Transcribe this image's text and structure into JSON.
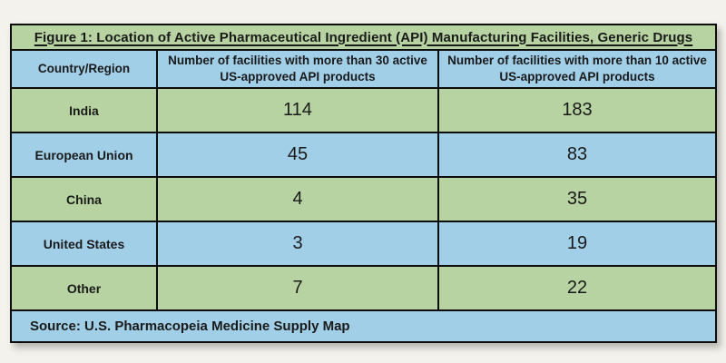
{
  "page": {
    "background_color": "#f3f2ec",
    "green_color": "#b6d3a1",
    "blue_color": "#a2cfe8",
    "border_color": "#0d0d0d",
    "text_color": "#1a1a1a"
  },
  "table": {
    "title": "Figure 1: Location of Active Pharmaceutical Ingredient (API) Manufacturing Facilities, Generic Drugs",
    "columns": [
      {
        "label": "Country/Region"
      },
      {
        "label": "Number of facilities with more than 30 active US-approved API products"
      },
      {
        "label": "Number of facilities with more than 10 active US-approved API products"
      }
    ],
    "rows": [
      {
        "country": "India",
        "more_than_30": "114",
        "more_than_10": "183"
      },
      {
        "country": "European Union",
        "more_than_30": "45",
        "more_than_10": "83"
      },
      {
        "country": "China",
        "more_than_30": "4",
        "more_than_10": "35"
      },
      {
        "country": "United States",
        "more_than_30": "3",
        "more_than_10": "19"
      },
      {
        "country": "Other",
        "more_than_30": "7",
        "more_than_10": "22"
      }
    ],
    "source": "Source: U.S. Pharmacopeia Medicine Supply Map"
  },
  "chart_data": {
    "type": "table",
    "title": "Figure 1: Location of Active Pharmaceutical Ingredient (API) Manufacturing Facilities, Generic Drugs",
    "columns": [
      "Country/Region",
      "Number of facilities with more than 30 active US-approved API products",
      "Number of facilities with more than 10 active US-approved API products"
    ],
    "rows": [
      [
        "India",
        114,
        183
      ],
      [
        "European Union",
        45,
        83
      ],
      [
        "China",
        4,
        35
      ],
      [
        "United States",
        3,
        19
      ],
      [
        "Other",
        7,
        22
      ]
    ],
    "source": "Source: U.S. Pharmacopeia Medicine Supply Map"
  }
}
